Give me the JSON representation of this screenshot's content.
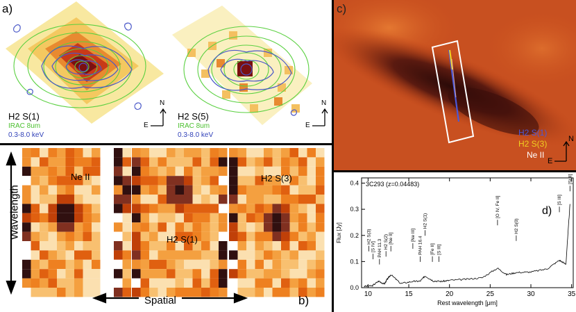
{
  "panel_a": {
    "letter": "a)",
    "left_map": {
      "line": "H2 S(1)",
      "irac": "IRAC 8um",
      "xray": "0.3-8.0 keV"
    },
    "right_map": {
      "line": "H2 S(5)",
      "irac": "IRAC 8um",
      "xray": "0.3-8.0 keV"
    },
    "compass": {
      "north": "N",
      "east": "E"
    }
  },
  "panel_b": {
    "letter": "b)",
    "y_label": "Wavelength",
    "x_label": "Spatial",
    "strip_labels": [
      "Ne II",
      "H2 S(1)",
      "H2 S(3)"
    ]
  },
  "panel_c": {
    "letter": "c)",
    "legend": [
      "H2 S(1)",
      "H2 S(3)",
      "Ne II"
    ],
    "compass": {
      "north": "N",
      "east": "E"
    },
    "colors": {
      "h2s1": "#4a58d8",
      "h2s3": "#f0d020",
      "ne2": "#ffffff"
    }
  },
  "panel_d": {
    "letter": "d)",
    "title": "3C293 (z=0.04483)",
    "x_axis": "Rest wavelength [μm]",
    "y_axis": "Flux [Jy]",
    "x_ticks": [
      "10",
      "15",
      "20",
      "25",
      "30",
      "35"
    ],
    "y_ticks": [
      "0.0",
      "0.1",
      "0.2",
      "0.3",
      "0.4"
    ],
    "lines": [
      "H2 S(3)",
      "[S IV]",
      "PAH 11.3",
      "H2 S(2)",
      "[Ne II]",
      "[Ne III]",
      "PAH 16.4",
      "H2 S(1)",
      "[Fe II]",
      "[S III]",
      "[O IV, Fe II]",
      "H2 S(0)",
      "[S III]",
      "[Si II]"
    ]
  },
  "chart_data": {
    "type": "line",
    "title": "3C293 (z=0.04483)",
    "xlabel": "Rest wavelength [μm]",
    "ylabel": "Flux [Jy]",
    "xlim": [
      9.2,
      35.2
    ],
    "ylim": [
      0,
      0.42
    ],
    "x": [
      9.5,
      10.5,
      11.3,
      12.0,
      12.3,
      12.8,
      14.0,
      15.5,
      16.4,
      17.0,
      18.0,
      19.0,
      20.0,
      22.0,
      24.0,
      25.9,
      27.0,
      28.2,
      30.0,
      32.0,
      33.5,
      34.3,
      34.8
    ],
    "y": [
      0.005,
      0.007,
      0.025,
      0.014,
      0.03,
      0.05,
      0.016,
      0.024,
      0.025,
      0.045,
      0.026,
      0.024,
      0.028,
      0.032,
      0.038,
      0.075,
      0.05,
      0.058,
      0.06,
      0.072,
      0.105,
      0.09,
      0.32
    ]
  }
}
